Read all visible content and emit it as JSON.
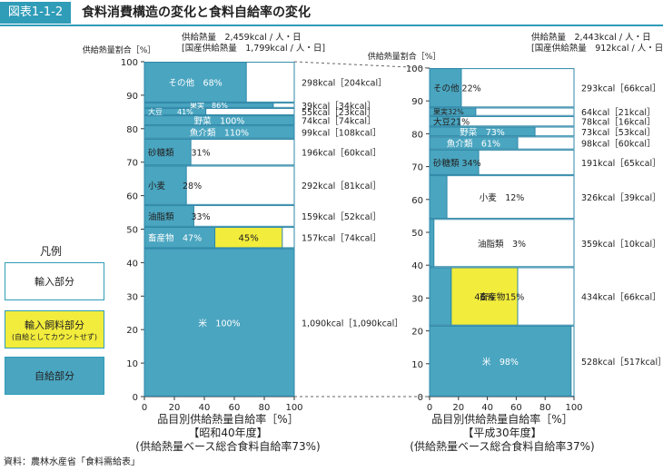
{
  "header": {
    "figure_no": "図表1-1-2",
    "title": "食料消費構造の変化と食料自給率の変化"
  },
  "colors": {
    "self": "#4aa5c0",
    "import": "#ffffff",
    "feed": "#f2ec3c",
    "border": "#2f88a8",
    "accent": "#2f9cb8"
  },
  "legend": {
    "title": "凡例",
    "items": [
      {
        "label": "輸入部分",
        "sub": "",
        "color": "#ffffff"
      },
      {
        "label": "輸入飼料部分",
        "sub": "(自給としてカウントせず)",
        "color": "#f2ec3c"
      },
      {
        "label": "自給部分",
        "sub": "",
        "color": "#4aa5c0"
      }
    ]
  },
  "source": "資料：農林水産省「食料需給表」",
  "chart_data": [
    {
      "type": "bar",
      "stacking": "marimekko",
      "ylabel": "供給熱量割合［%］",
      "xlabel": "品目別供給熱量自給率［%］",
      "era": "【昭和40年度】",
      "subtitle": "(供給熱量ベース総合食料自給率73%)",
      "supply_line1": "供給熱量　2,459kcal / 人・日",
      "supply_line2": "[国産供給熱量　1,799kcal / 人・日]",
      "xlim": [
        0,
        100
      ],
      "ylim": [
        0,
        100
      ],
      "xticks": [
        "0",
        "20",
        "40",
        "60",
        "80",
        "100"
      ],
      "yticks": [
        "0",
        "10",
        "20",
        "30",
        "40",
        "50",
        "60",
        "70",
        "80",
        "90",
        "100"
      ],
      "items": [
        {
          "name": "米",
          "y0": 0,
          "y1": 44.3,
          "self": 100,
          "feed": 0,
          "label": "米　100%",
          "kcal": "1,090kcal［1,090kcal］"
        },
        {
          "name": "畜産物",
          "y0": 44.3,
          "y1": 50.7,
          "self": 47,
          "feed": 45,
          "label": "畜産物　47%",
          "feed_label": "45%",
          "kcal": "157kcal［74kcal］"
        },
        {
          "name": "油脂類",
          "y0": 50.7,
          "y1": 57.2,
          "self": 33,
          "feed": 0,
          "label": "油脂類　　33%",
          "kcal": "159kcal［52kcal］"
        },
        {
          "name": "小麦",
          "y0": 57.2,
          "y1": 69.0,
          "self": 28,
          "feed": 0,
          "label": "小麦　　28%",
          "kcal": "292kcal［81kcal］"
        },
        {
          "name": "砂糖類",
          "y0": 69.0,
          "y1": 77.0,
          "self": 31,
          "feed": 0,
          "label": "砂糖類　　31%",
          "kcal": "196kcal［60kcal］"
        },
        {
          "name": "魚介類",
          "y0": 77.0,
          "y1": 81.0,
          "self": 100,
          "feed": 0,
          "label": "魚介類　110%",
          "kcal": "99kcal［108kcal］"
        },
        {
          "name": "野菜",
          "y0": 81.0,
          "y1": 84.0,
          "self": 100,
          "feed": 0,
          "label": "野菜　100%",
          "kcal": "74kcal［74kcal］"
        },
        {
          "name": "大豆",
          "y0": 84.0,
          "y1": 86.2,
          "self": 41,
          "feed": 0,
          "label": "大豆　　41%",
          "kcal": "55kcal［23kcal］"
        },
        {
          "name": "果実",
          "y0": 86.2,
          "y1": 87.8,
          "self": 86,
          "feed": 0,
          "label": "果実　86%",
          "kcal": "39kcal［34kcal］"
        },
        {
          "name": "その他",
          "y0": 87.8,
          "y1": 100,
          "self": 68,
          "feed": 0,
          "label": "その他　68%",
          "kcal": "298kcal［204kcal］"
        }
      ]
    },
    {
      "type": "bar",
      "stacking": "marimekko",
      "ylabel": "供給熱量割合［%］",
      "xlabel": "品目別供給熱量自給率［%］",
      "era": "【平成30年度】",
      "subtitle": "(供給熱量ベース総合食料自給率37%)",
      "supply_line1": "供給熱量　2,443kcal / 人・日",
      "supply_line2": "[国産供給熱量　912kcal / 人・日]",
      "xlim": [
        0,
        100
      ],
      "ylim": [
        0,
        100
      ],
      "xticks": [
        "0",
        "20",
        "40",
        "60",
        "80",
        "100"
      ],
      "yticks": [
        "0",
        "10",
        "20",
        "30",
        "40",
        "50",
        "60",
        "70",
        "80",
        "90",
        "100"
      ],
      "items": [
        {
          "name": "米",
          "y0": 0,
          "y1": 21.6,
          "self": 98,
          "feed": 0,
          "label": "米　98%",
          "kcal": "528kcal［517kcal］"
        },
        {
          "name": "畜産物",
          "y0": 21.6,
          "y1": 39.4,
          "self": 15,
          "feed": 46,
          "label": "畜産物15%",
          "feed_label": "46%",
          "kcal": "434kcal［66kcal］"
        },
        {
          "name": "油脂類",
          "y0": 39.4,
          "y1": 54.1,
          "self": 3,
          "feed": 0,
          "label": "油脂類　3%",
          "kcal": "359kcal［10kcal］"
        },
        {
          "name": "小麦",
          "y0": 54.1,
          "y1": 67.4,
          "self": 12,
          "feed": 0,
          "label": "小麦　12%",
          "kcal": "326kcal［39kcal］"
        },
        {
          "name": "砂糖類",
          "y0": 67.4,
          "y1": 75.2,
          "self": 34,
          "feed": 0,
          "label": "砂糖類 34%",
          "kcal": "191kcal［65kcal］"
        },
        {
          "name": "魚介類",
          "y0": 75.2,
          "y1": 79.2,
          "self": 61,
          "feed": 0,
          "label": "魚介類　61%",
          "kcal": "98kcal［60kcal］"
        },
        {
          "name": "野菜",
          "y0": 79.2,
          "y1": 82.2,
          "self": 73,
          "feed": 0,
          "label": "野菜　73%",
          "kcal": "73kcal［53kcal］"
        },
        {
          "name": "大豆",
          "y0": 82.2,
          "y1": 85.4,
          "self": 21,
          "feed": 0,
          "label": "大豆21%",
          "kcal": "78kcal［16kcal］"
        },
        {
          "name": "果実",
          "y0": 85.4,
          "y1": 88.0,
          "self": 32,
          "feed": 0,
          "label": "果実32%",
          "kcal": "64kcal［21kcal］"
        },
        {
          "name": "その他",
          "y0": 88.0,
          "y1": 100,
          "self": 22,
          "feed": 0,
          "label": "その他 22%",
          "kcal": "293kcal［66kcal］"
        }
      ]
    }
  ]
}
